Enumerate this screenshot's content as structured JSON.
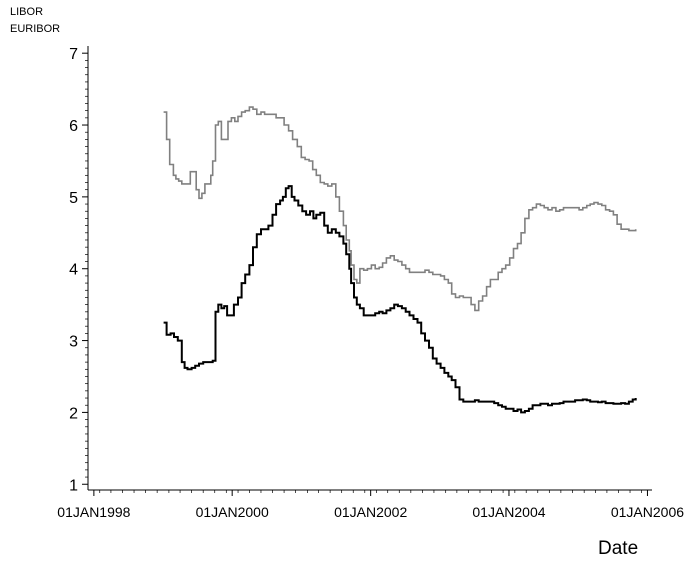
{
  "chart_data": {
    "type": "line",
    "title": "",
    "xlabel": "Date",
    "ylabel": "",
    "legend": [
      "LIBOR",
      "EURIBOR"
    ],
    "legend_placement": "top-left",
    "grid": false,
    "xlim": [
      "1997-12-01",
      "2006-01-25"
    ],
    "ylim": [
      0.92,
      7.1
    ],
    "xticks": [
      "1998-01-01",
      "2000-01-01",
      "2002-01-01",
      "2004-01-01",
      "2006-01-01"
    ],
    "xtick_labels": [
      "01JAN1998",
      "01JAN2000",
      "01JAN2002",
      "01JAN2004",
      "01JAN2006"
    ],
    "yticks": [
      1,
      2,
      3,
      4,
      5,
      6,
      7
    ],
    "ytick_labels": [
      "1",
      "2",
      "3",
      "4",
      "5",
      "6",
      "7"
    ],
    "series": [
      {
        "name": "LIBOR",
        "color": "#808080",
        "x": [
          "1999-01-04",
          "1999-01-20",
          "1999-02-05",
          "1999-02-25",
          "1999-03-10",
          "1999-03-25",
          "1999-04-10",
          "1999-05-01",
          "1999-05-25",
          "1999-06-10",
          "1999-06-25",
          "1999-07-10",
          "1999-07-25",
          "1999-08-10",
          "1999-08-25",
          "1999-09-10",
          "1999-09-20",
          "1999-10-05",
          "1999-10-20",
          "1999-11-05",
          "1999-11-25",
          "1999-12-10",
          "1999-12-28",
          "2000-01-15",
          "2000-02-01",
          "2000-02-20",
          "2000-03-10",
          "2000-04-01",
          "2000-04-20",
          "2000-05-10",
          "2000-06-01",
          "2000-06-20",
          "2000-07-10",
          "2000-08-01",
          "2000-08-20",
          "2000-09-10",
          "2000-10-01",
          "2000-10-25",
          "2000-11-15",
          "2000-12-10",
          "2000-12-31",
          "2001-01-20",
          "2001-02-10",
          "2001-03-01",
          "2001-03-20",
          "2001-04-10",
          "2001-05-01",
          "2001-05-20",
          "2001-06-10",
          "2001-07-01",
          "2001-07-20",
          "2001-08-10",
          "2001-08-25",
          "2001-09-10",
          "2001-09-20",
          "2001-10-05",
          "2001-10-20",
          "2001-11-05",
          "2001-11-25",
          "2001-12-15",
          "2002-01-05",
          "2002-01-25",
          "2002-02-15",
          "2002-03-05",
          "2002-03-25",
          "2002-04-15",
          "2002-05-05",
          "2002-05-25",
          "2002-06-15",
          "2002-07-05",
          "2002-07-25",
          "2002-08-15",
          "2002-09-05",
          "2002-09-25",
          "2002-10-15",
          "2002-11-05",
          "2002-11-25",
          "2002-12-15",
          "2003-01-05",
          "2003-01-25",
          "2003-02-15",
          "2003-03-05",
          "2003-03-25",
          "2003-04-15",
          "2003-05-05",
          "2003-05-25",
          "2003-06-15",
          "2003-07-05",
          "2003-07-25",
          "2003-08-15",
          "2003-09-05",
          "2003-09-25",
          "2003-10-15",
          "2003-11-05",
          "2003-11-25",
          "2003-12-15",
          "2004-01-05",
          "2004-01-25",
          "2004-02-15",
          "2004-03-05",
          "2004-03-25",
          "2004-04-15",
          "2004-05-05",
          "2004-05-25",
          "2004-06-15",
          "2004-07-05",
          "2004-07-25",
          "2004-08-15",
          "2004-09-05",
          "2004-09-25",
          "2004-10-15",
          "2004-11-05",
          "2004-11-25",
          "2004-12-15",
          "2005-01-05",
          "2005-01-25",
          "2005-02-15",
          "2005-03-05",
          "2005-03-25",
          "2005-04-15",
          "2005-05-05",
          "2005-05-25",
          "2005-06-15",
          "2005-07-05",
          "2005-07-25",
          "2005-08-15",
          "2005-09-05",
          "2005-09-25",
          "2005-10-15",
          "2005-10-31"
        ],
        "y": [
          6.18,
          5.8,
          5.45,
          5.3,
          5.25,
          5.22,
          5.18,
          5.18,
          5.35,
          5.35,
          5.1,
          4.98,
          5.05,
          5.18,
          5.18,
          5.3,
          5.5,
          6.0,
          6.05,
          5.8,
          5.8,
          6.05,
          6.1,
          6.05,
          6.12,
          6.18,
          6.2,
          6.25,
          6.22,
          6.15,
          6.18,
          6.15,
          6.15,
          6.15,
          6.1,
          6.1,
          6.0,
          5.92,
          5.8,
          5.7,
          5.55,
          5.52,
          5.5,
          5.38,
          5.3,
          5.2,
          5.18,
          5.15,
          5.18,
          5.0,
          4.8,
          4.6,
          4.4,
          4.25,
          4.05,
          3.85,
          3.8,
          4.0,
          3.98,
          4.0,
          4.05,
          4.0,
          4.02,
          4.08,
          4.15,
          4.18,
          4.12,
          4.1,
          4.05,
          4.0,
          3.95,
          3.95,
          3.95,
          3.95,
          3.98,
          3.95,
          3.92,
          3.92,
          3.9,
          3.85,
          3.8,
          3.65,
          3.6,
          3.62,
          3.6,
          3.6,
          3.5,
          3.42,
          3.55,
          3.62,
          3.75,
          3.85,
          3.85,
          3.95,
          4.0,
          4.05,
          4.15,
          4.28,
          4.35,
          4.5,
          4.7,
          4.82,
          4.85,
          4.9,
          4.88,
          4.85,
          4.82,
          4.85,
          4.8,
          4.82,
          4.85,
          4.85,
          4.85,
          4.85,
          4.82,
          4.85,
          4.88,
          4.9,
          4.92,
          4.9,
          4.88,
          4.82,
          4.8,
          4.75,
          4.62,
          4.55,
          4.55,
          4.53,
          4.53,
          4.55
        ]
      },
      {
        "name": "EURIBOR",
        "color": "#000000",
        "x": [
          "1999-01-04",
          "1999-01-20",
          "1999-02-10",
          "1999-02-28",
          "1999-03-20",
          "1999-04-10",
          "1999-04-25",
          "1999-05-10",
          "1999-06-01",
          "1999-06-20",
          "1999-07-10",
          "1999-08-01",
          "1999-08-20",
          "1999-09-10",
          "1999-09-20",
          "1999-10-05",
          "1999-10-20",
          "1999-11-05",
          "1999-11-20",
          "1999-12-05",
          "1999-12-20",
          "2000-01-10",
          "2000-02-01",
          "2000-02-20",
          "2000-03-10",
          "2000-04-01",
          "2000-04-20",
          "2000-05-10",
          "2000-06-01",
          "2000-06-20",
          "2000-07-10",
          "2000-08-01",
          "2000-08-20",
          "2000-09-10",
          "2000-09-25",
          "2000-10-10",
          "2000-10-25",
          "2000-11-10",
          "2000-11-25",
          "2000-12-15",
          "2001-01-05",
          "2001-01-25",
          "2001-02-15",
          "2001-03-05",
          "2001-03-20",
          "2001-04-10",
          "2001-05-01",
          "2001-05-20",
          "2001-06-10",
          "2001-07-01",
          "2001-07-20",
          "2001-08-10",
          "2001-08-25",
          "2001-09-10",
          "2001-09-20",
          "2001-10-05",
          "2001-10-20",
          "2001-11-05",
          "2001-11-25",
          "2001-12-15",
          "2002-01-05",
          "2002-01-25",
          "2002-02-15",
          "2002-03-05",
          "2002-03-25",
          "2002-04-15",
          "2002-05-05",
          "2002-05-25",
          "2002-06-15",
          "2002-07-05",
          "2002-07-25",
          "2002-08-15",
          "2002-09-05",
          "2002-09-25",
          "2002-10-15",
          "2002-11-05",
          "2002-11-25",
          "2002-12-15",
          "2003-01-05",
          "2003-01-25",
          "2003-02-15",
          "2003-03-05",
          "2003-03-25",
          "2003-04-15",
          "2003-05-05",
          "2003-05-25",
          "2003-06-15",
          "2003-07-05",
          "2003-07-25",
          "2003-08-15",
          "2003-09-05",
          "2003-09-25",
          "2003-10-15",
          "2003-11-05",
          "2003-11-25",
          "2003-12-15",
          "2004-01-05",
          "2004-01-25",
          "2004-02-15",
          "2004-03-05",
          "2004-03-25",
          "2004-04-15",
          "2004-05-05",
          "2004-05-25",
          "2004-06-15",
          "2004-07-05",
          "2004-07-25",
          "2004-08-15",
          "2004-09-05",
          "2004-09-25",
          "2004-10-15",
          "2004-11-05",
          "2004-11-25",
          "2004-12-15",
          "2005-01-05",
          "2005-01-25",
          "2005-02-15",
          "2005-03-05",
          "2005-03-25",
          "2005-04-15",
          "2005-05-05",
          "2005-05-25",
          "2005-06-15",
          "2005-07-05",
          "2005-07-25",
          "2005-08-15",
          "2005-09-05",
          "2005-09-25",
          "2005-10-15",
          "2005-10-31"
        ],
        "y": [
          3.25,
          3.08,
          3.1,
          3.05,
          3.0,
          2.7,
          2.62,
          2.6,
          2.62,
          2.65,
          2.68,
          2.7,
          2.7,
          2.7,
          2.72,
          3.4,
          3.5,
          3.45,
          3.48,
          3.35,
          3.35,
          3.5,
          3.6,
          3.8,
          3.92,
          4.05,
          4.3,
          4.48,
          4.55,
          4.55,
          4.6,
          4.75,
          4.9,
          4.95,
          5.0,
          5.12,
          5.15,
          5.0,
          4.95,
          4.88,
          4.8,
          4.75,
          4.8,
          4.7,
          4.75,
          4.78,
          4.6,
          4.5,
          4.55,
          4.5,
          4.45,
          4.35,
          4.2,
          4.0,
          3.8,
          3.6,
          3.5,
          3.45,
          3.35,
          3.35,
          3.35,
          3.38,
          3.4,
          3.38,
          3.42,
          3.45,
          3.5,
          3.48,
          3.45,
          3.4,
          3.35,
          3.3,
          3.25,
          3.1,
          3.0,
          2.9,
          2.75,
          2.68,
          2.62,
          2.55,
          2.5,
          2.45,
          2.35,
          2.18,
          2.15,
          2.15,
          2.15,
          2.17,
          2.15,
          2.15,
          2.15,
          2.15,
          2.13,
          2.1,
          2.08,
          2.05,
          2.05,
          2.02,
          2.04,
          2.0,
          2.02,
          2.05,
          2.1,
          2.1,
          2.12,
          2.12,
          2.1,
          2.12,
          2.12,
          2.13,
          2.15,
          2.15,
          2.15,
          2.17,
          2.17,
          2.18,
          2.17,
          2.15,
          2.15,
          2.14,
          2.15,
          2.13,
          2.13,
          2.12,
          2.12,
          2.13,
          2.12,
          2.15,
          2.18,
          2.2
        ]
      }
    ]
  }
}
